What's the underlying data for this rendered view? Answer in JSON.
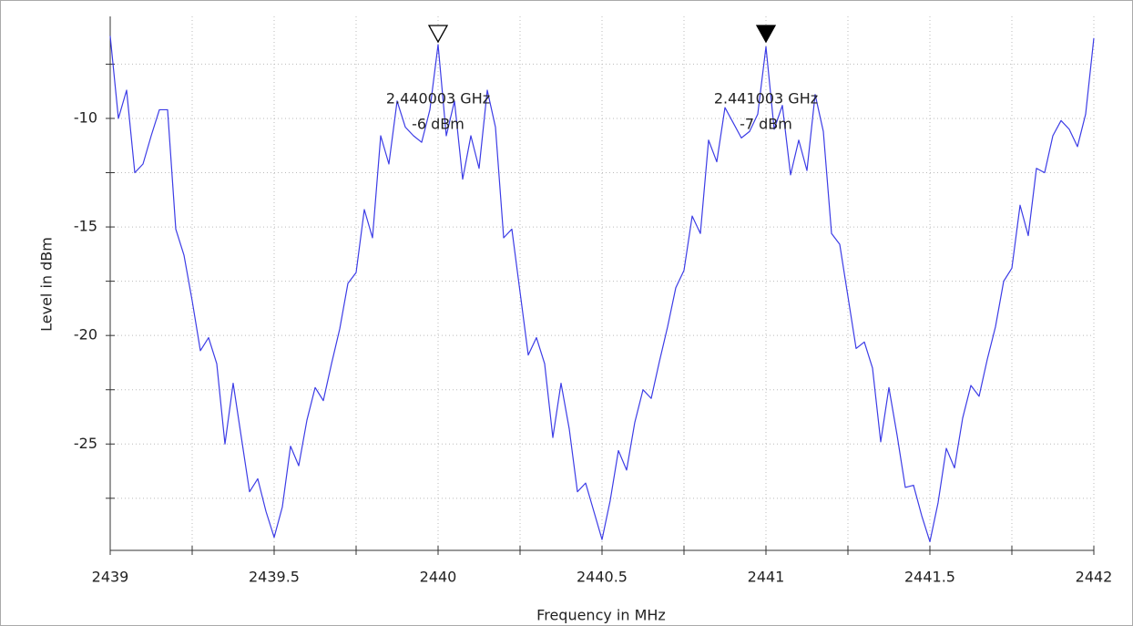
{
  "chart_data": {
    "type": "line",
    "x_label": "Frequency in MHz",
    "y_label": "Level in dBm",
    "x": [
      2439,
      2439.025,
      2439.05,
      2439.075,
      2439.1,
      2439.125,
      2439.15,
      2439.175,
      2439.2,
      2439.225,
      2439.25,
      2439.275,
      2439.3,
      2439.325,
      2439.35,
      2439.375,
      2439.4,
      2439.425,
      2439.45,
      2439.475,
      2439.5,
      2439.525,
      2439.55,
      2439.575,
      2439.6,
      2439.625,
      2439.65,
      2439.675,
      2439.7,
      2439.725,
      2439.75,
      2439.775,
      2439.8,
      2439.825,
      2439.85,
      2439.875,
      2439.9,
      2439.925,
      2439.95,
      2439.975,
      2440,
      2440.025,
      2440.05,
      2440.075,
      2440.1,
      2440.125,
      2440.15,
      2440.175,
      2440.2,
      2440.225,
      2440.25,
      2440.275,
      2440.3,
      2440.325,
      2440.35,
      2440.375,
      2440.4,
      2440.425,
      2440.45,
      2440.475,
      2440.5,
      2440.525,
      2440.55,
      2440.575,
      2440.6,
      2440.625,
      2440.65,
      2440.675,
      2440.7,
      2440.725,
      2440.75,
      2440.775,
      2440.8,
      2440.825,
      2440.85,
      2440.875,
      2440.9,
      2440.925,
      2440.95,
      2440.975,
      2441,
      2441.025,
      2441.05,
      2441.075,
      2441.1,
      2441.125,
      2441.15,
      2441.175,
      2441.2,
      2441.225,
      2441.25,
      2441.275,
      2441.3,
      2441.325,
      2441.35,
      2441.375,
      2441.4,
      2441.425,
      2441.45,
      2441.475,
      2441.5,
      2441.525,
      2441.55,
      2441.575,
      2441.6,
      2441.625,
      2441.65,
      2441.675,
      2441.7,
      2441.725,
      2441.75,
      2441.775,
      2441.8,
      2441.825,
      2441.85,
      2441.875,
      2441.9,
      2441.925,
      2441.95,
      2441.975,
      2442
    ],
    "series": [
      {
        "color": "#3c3ce6",
        "values": [
          -6.2,
          -10,
          -8.7,
          -12.5,
          -12.1,
          -10.8,
          -9.6,
          -9.6,
          -15.1,
          -16.3,
          -18.4,
          -20.7,
          -20.1,
          -21.3,
          -25,
          -22.2,
          -24.7,
          -27.2,
          -26.6,
          -28.1,
          -29.3,
          -27.9,
          -25.1,
          -26.0,
          -23.9,
          -22.4,
          -23.0,
          -21.3,
          -19.7,
          -17.6,
          -17.1,
          -14.2,
          -15.5,
          -10.8,
          -12.1,
          -9.2,
          -10.4,
          -10.8,
          -11.1,
          -9.6,
          -6.6,
          -10.8,
          -9.2,
          -12.8,
          -10.8,
          -12.3,
          -8.7,
          -10.4,
          -15.5,
          -15.1,
          -18.0,
          -20.9,
          -20.1,
          -21.3,
          -24.7,
          -22.2,
          -24.3,
          -27.2,
          -26.8,
          -28.1,
          -29.4,
          -27.6,
          -25.3,
          -26.2,
          -24.0,
          -22.5,
          -22.9,
          -21.2,
          -19.6,
          -17.8,
          -17.0,
          -14.5,
          -15.3,
          -11.0,
          -12.0,
          -9.5,
          -10.2,
          -10.9,
          -10.6,
          -9.8,
          -6.7,
          -10.5,
          -9.4,
          -12.6,
          -11.0,
          -12.4,
          -8.9,
          -10.6,
          -15.3,
          -15.8,
          -18.2,
          -20.6,
          -20.3,
          -21.5,
          -24.9,
          -22.4,
          -24.6,
          -27.0,
          -26.9,
          -28.3,
          -29.5,
          -27.7,
          -25.2,
          -26.1,
          -23.8,
          -22.3,
          -22.8,
          -21.1,
          -19.6,
          -17.5,
          -16.9,
          -14.0,
          -15.4,
          -12.3,
          -12.5,
          -10.8,
          -10.1,
          -10.5,
          -11.3,
          -9.8,
          -6.3
        ]
      }
    ],
    "xlim": [
      2439,
      2442
    ],
    "ylim": [
      -29.9,
      -5.3
    ],
    "xticks": [
      2439,
      2439.5,
      2440,
      2440.5,
      2441,
      2441.5,
      2442
    ],
    "yticks": [
      -25,
      -20,
      -15,
      -10
    ],
    "x_minor_ticks": [
      2439.25,
      2439.75,
      2440.25,
      2440.75,
      2441.25,
      2441.75
    ],
    "y_minor_ticks": [
      -27.5,
      -22.5,
      -17.5,
      -12.5,
      -7.5
    ],
    "grid": true,
    "markers": [
      {
        "x": 2440,
        "label": "2.440003 GHz",
        "level": "-6 dBm",
        "filled": false
      },
      {
        "x": 2441,
        "label": "2.441003 GHz",
        "level": "-7 dBm",
        "filled": true
      }
    ]
  }
}
